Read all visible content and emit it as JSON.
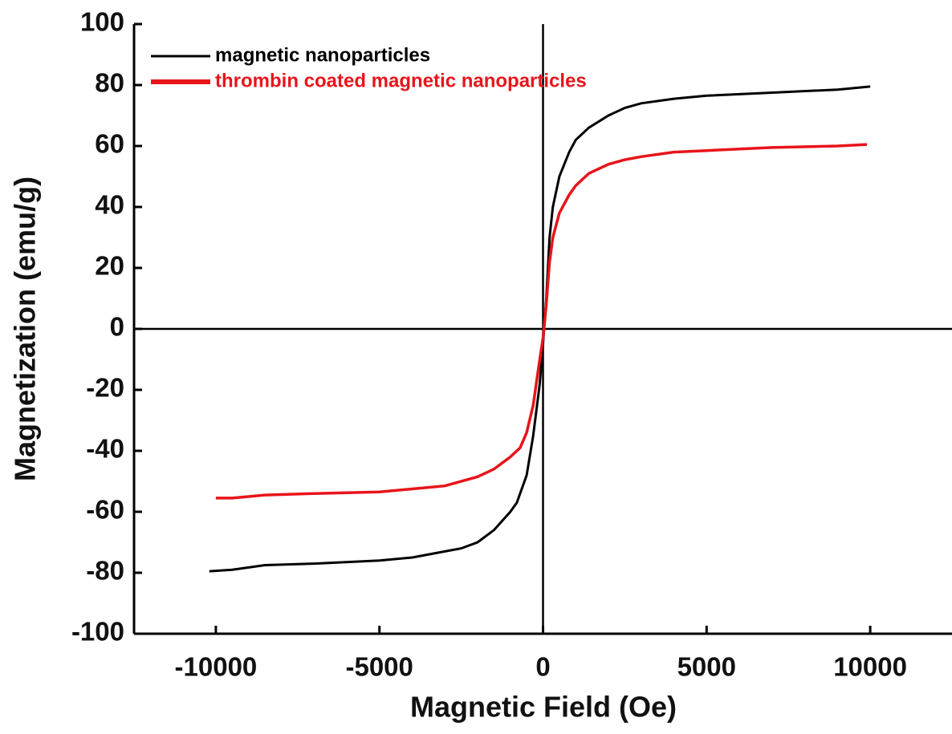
{
  "chart_data": {
    "type": "line",
    "xlabel": "Magnetic Field (Oe)",
    "ylabel": "Magnetization (emu/g)",
    "xlim": [
      -12500,
      12500
    ],
    "ylim": [
      -100,
      100
    ],
    "xticks": [
      -10000,
      -5000,
      0,
      5000,
      10000
    ],
    "yticks": [
      -100,
      -80,
      -60,
      -40,
      -20,
      0,
      20,
      40,
      60,
      80,
      100
    ],
    "legend": "upper left",
    "series": [
      {
        "name": "magnetic nanoparticles",
        "color": "#000000",
        "x": [
          -10200,
          -9500,
          -8500,
          -7000,
          -5000,
          -4000,
          -3000,
          -2500,
          -2000,
          -1500,
          -1000,
          -800,
          -500,
          -300,
          -100,
          0,
          100,
          200,
          300,
          500,
          800,
          1000,
          1400,
          2000,
          2500,
          3000,
          4000,
          5000,
          7000,
          9000,
          10000
        ],
        "values": [
          -79.5,
          -79,
          -77.5,
          -77,
          -76,
          -75,
          -73,
          -72,
          -70,
          -66,
          -60,
          -57,
          -48,
          -35,
          -18,
          -5,
          10,
          30,
          40,
          50,
          58,
          62,
          66,
          70,
          72.5,
          74,
          75.5,
          76.5,
          77.5,
          78.5,
          79.5
        ]
      },
      {
        "name": "thrombin coated magnetic nanoparticles",
        "color": "#e8141b",
        "x": [
          -10000,
          -9500,
          -8500,
          -7000,
          -5000,
          -4000,
          -3000,
          -2000,
          -1500,
          -1000,
          -700,
          -500,
          -300,
          -100,
          0,
          100,
          200,
          300,
          500,
          800,
          1000,
          1400,
          2000,
          2500,
          3000,
          4000,
          5000,
          7000,
          9000,
          9900
        ],
        "values": [
          -55.5,
          -55.5,
          -54.5,
          -54,
          -53.5,
          -52.5,
          -51.5,
          -48.5,
          -46,
          -42,
          -39,
          -34,
          -25,
          -10,
          -3,
          8,
          22,
          30,
          38,
          44,
          47,
          51,
          54,
          55.5,
          56.5,
          58,
          58.5,
          59.5,
          60,
          60.5
        ]
      }
    ]
  }
}
